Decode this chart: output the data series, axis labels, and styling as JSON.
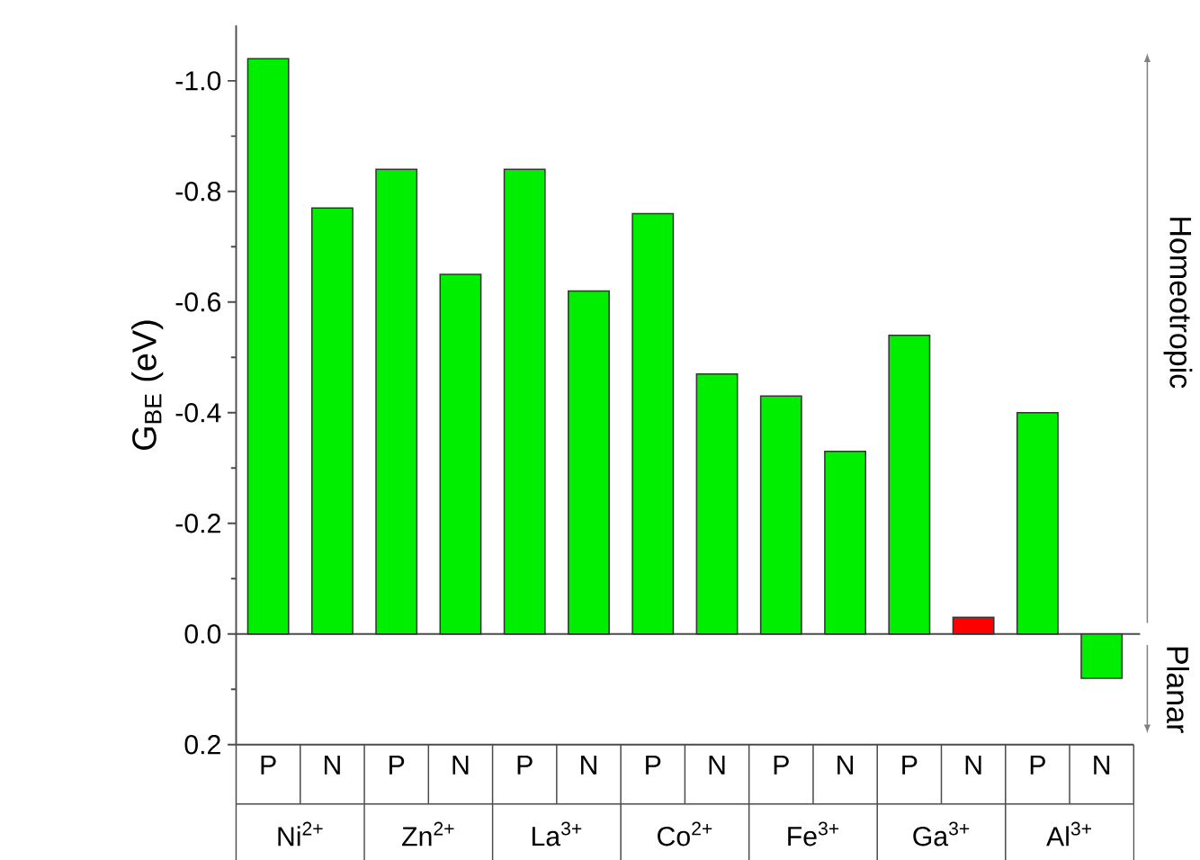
{
  "chart_data": {
    "type": "bar",
    "ylabel": "G$_{BE}$ (eV)",
    "categories": [
      "P",
      "N",
      "P",
      "N",
      "P",
      "N",
      "P",
      "N",
      "P",
      "N",
      "P",
      "N",
      "P",
      "N"
    ],
    "values": [
      -1.04,
      -0.77,
      -0.84,
      -0.65,
      -0.84,
      -0.62,
      -0.76,
      -0.47,
      -0.43,
      -0.33,
      -0.54,
      -0.03,
      -0.4,
      0.08
    ],
    "colors": [
      "#00ee00",
      "#00ee00",
      "#00ee00",
      "#00ee00",
      "#00ee00",
      "#00ee00",
      "#00ee00",
      "#00ee00",
      "#00ee00",
      "#00ee00",
      "#00ee00",
      "#ff0000",
      "#00ee00",
      "#00ee00"
    ],
    "ylim": [
      0.2,
      -1.1
    ],
    "yticks": [
      {
        "value": 0.2,
        "label": "0.2"
      },
      {
        "value": 0.0,
        "label": "0.0"
      },
      {
        "value": -0.2,
        "label": "-0.2"
      },
      {
        "value": -0.4,
        "label": "-0.4"
      },
      {
        "value": -0.6,
        "label": "-0.6"
      },
      {
        "value": -0.8,
        "label": "-0.8"
      },
      {
        "value": -1.0,
        "label": "-1.0"
      }
    ],
    "ref_lines": [
      {
        "axis": "y",
        "value": 0
      }
    ],
    "annotations": [
      "Ni$^{2+}$",
      "Zn$^{2+}$",
      "La$^{3+}$",
      "Co$^{2+}$",
      "Fe$^{3+}$",
      "Ga$^{3+}$",
      "Al$^{3+}$",
      "Homeotropic",
      "Planar"
    ]
  }
}
